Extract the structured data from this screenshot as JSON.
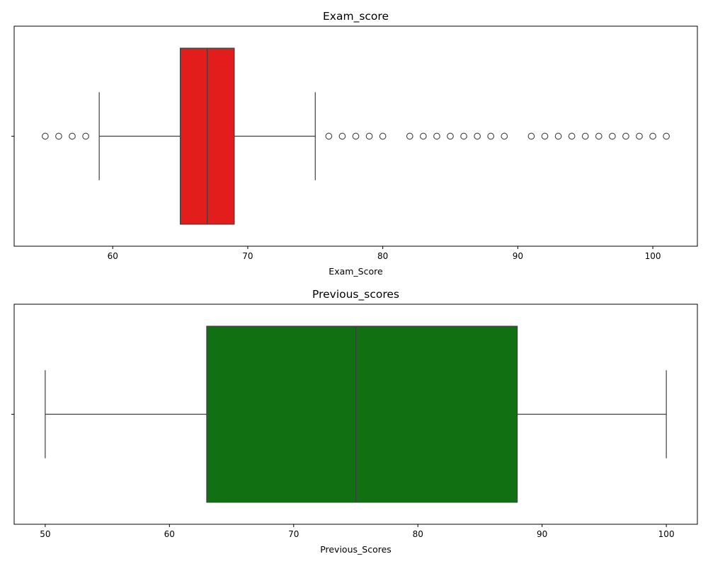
{
  "chart_data": [
    {
      "type": "box",
      "title": "Exam_score",
      "xlabel": "Exam_Score",
      "xlim": [
        52.7,
        103.3
      ],
      "xticks": [
        60,
        70,
        80,
        90,
        100
      ],
      "box_color": "#e31c1c",
      "stats": {
        "whisker_low": 59,
        "q1": 65,
        "median": 67,
        "q3": 69,
        "whisker_high": 75
      },
      "outliers": [
        55,
        56,
        57,
        58,
        76,
        77,
        78,
        79,
        80,
        82,
        83,
        84,
        85,
        86,
        87,
        88,
        89,
        91,
        92,
        93,
        94,
        95,
        96,
        97,
        98,
        99,
        100,
        101
      ]
    },
    {
      "type": "box",
      "title": "Previous_scores",
      "xlabel": "Previous_Scores",
      "xlim": [
        47.5,
        102.5
      ],
      "xticks": [
        50,
        60,
        70,
        80,
        90,
        100
      ],
      "box_color": "#117011",
      "stats": {
        "whisker_low": 50,
        "q1": 63,
        "median": 75,
        "q3": 88,
        "whisker_high": 100
      },
      "outliers": []
    }
  ]
}
